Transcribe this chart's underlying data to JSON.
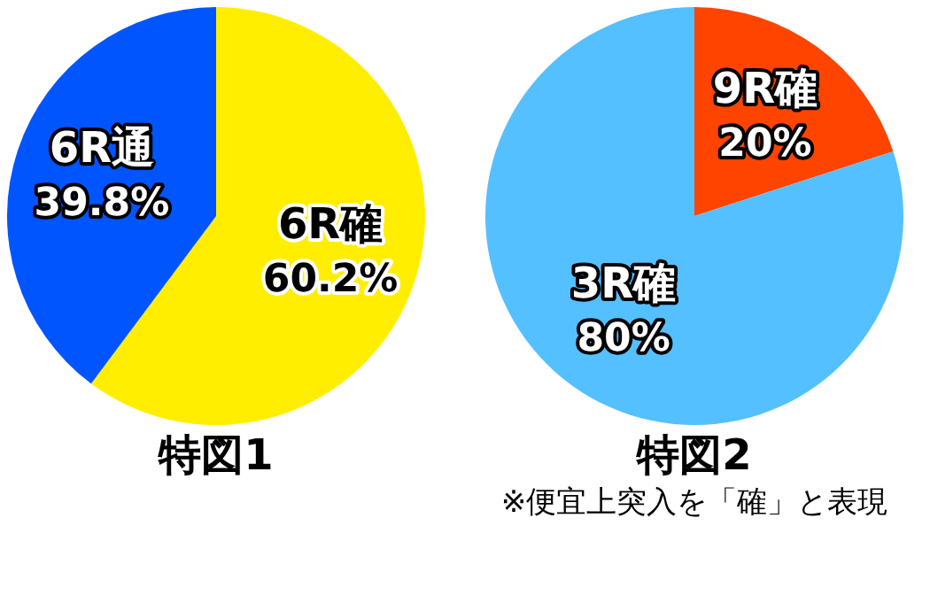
{
  "chart_data": [
    {
      "type": "pie",
      "title": "特図1",
      "categories": [
        "6R確",
        "6R通"
      ],
      "values": [
        60.2,
        39.8
      ],
      "colors": [
        "#ffee00",
        "#0055ff"
      ],
      "value_labels": [
        "60.2%",
        "39.8%"
      ],
      "legend": false
    },
    {
      "type": "pie",
      "title": "特図2",
      "categories": [
        "9R確",
        "3R確"
      ],
      "values": [
        20,
        80
      ],
      "colors": [
        "#ff4400",
        "#55c0ff"
      ],
      "value_labels": [
        "20%",
        "80%"
      ],
      "legend": false,
      "annotations": [
        "※便宜上突入を「確」と表現"
      ]
    }
  ]
}
